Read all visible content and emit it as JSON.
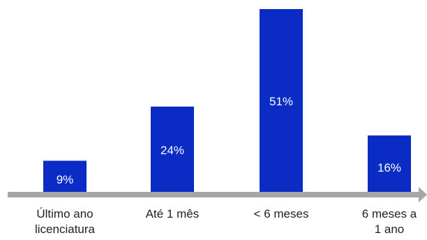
{
  "chart_data": {
    "type": "bar",
    "categories": [
      [
        "Último ano",
        "licenciatura"
      ],
      [
        "Até 1 mês"
      ],
      [
        "< 6 meses"
      ],
      [
        "6 meses a",
        "1 ano"
      ]
    ],
    "values": [
      9,
      24,
      51,
      16
    ],
    "value_labels": [
      "9%",
      "24%",
      "51%",
      "16%"
    ],
    "ylim": [
      0,
      51
    ],
    "grid": false,
    "colors": {
      "bar": "#0a2bc4",
      "axis": "#a6a6a6",
      "label_text": "#ffffff",
      "category_text": "#222222"
    }
  }
}
